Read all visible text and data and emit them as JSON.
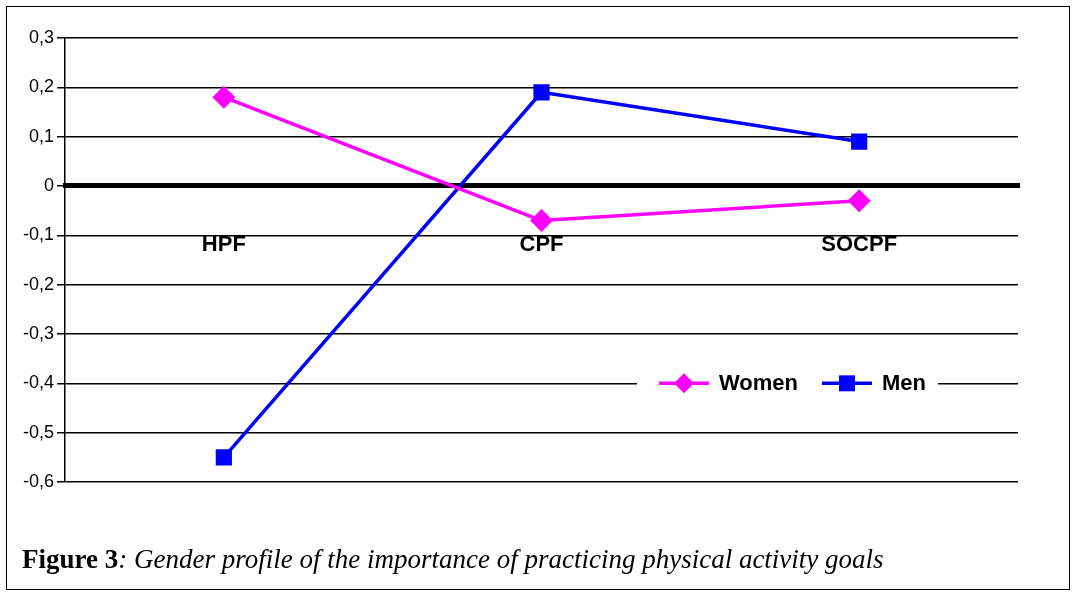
{
  "chart_data": {
    "type": "line",
    "title": "Figure 3: Gender profile of the importance of practicing physical activity goals",
    "categories": [
      "HPF",
      "CPF",
      "SOCPF"
    ],
    "series": [
      {
        "name": "Women",
        "color": "#ff00ff",
        "values": [
          0.18,
          -0.07,
          -0.03
        ],
        "marker": "diamond"
      },
      {
        "name": "Men",
        "color": "#0000ff",
        "values": [
          -0.55,
          0.19,
          0.09
        ],
        "marker": "square"
      }
    ],
    "ylim": [
      -0.6,
      0.3
    ],
    "yticks": [
      {
        "value": -0.6,
        "label": "-0,6"
      },
      {
        "value": -0.5,
        "label": "-0,5"
      },
      {
        "value": -0.4,
        "label": "-0,4"
      },
      {
        "value": -0.3,
        "label": "-0,3"
      },
      {
        "value": -0.2,
        "label": "-0,2"
      },
      {
        "value": -0.1,
        "label": "-0,1"
      },
      0,
      {
        "value": 0.1,
        "label": "0,1"
      },
      {
        "value": 0.2,
        "label": "0,2"
      },
      {
        "value": 0.3,
        "label": "0,3"
      }
    ],
    "grid": "y",
    "legend": "bottom right",
    "line_style": "solid"
  }
}
